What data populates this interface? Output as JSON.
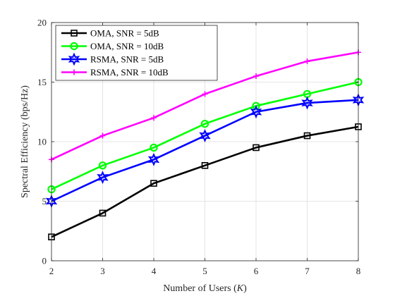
{
  "chart_data": {
    "type": "line",
    "xlabel": "Number of Users (",
    "xlabel_var": "K",
    "xlabel_close": ")",
    "ylabel": "Spectral Efficiency (bps/Hz)",
    "x": [
      2,
      3,
      4,
      5,
      6,
      7,
      8
    ],
    "xlim": [
      2,
      8
    ],
    "ylim": [
      0,
      20
    ],
    "xticks": [
      2,
      3,
      4,
      5,
      6,
      7,
      8
    ],
    "yticks": [
      0,
      5,
      10,
      15,
      20
    ],
    "grid": true,
    "legend_position": "top-left",
    "series": [
      {
        "name": "OMA, SNR = 5dB",
        "color": "#000000",
        "marker": "square",
        "values": [
          2.0,
          4.0,
          6.5,
          8.0,
          9.5,
          10.5,
          11.25
        ]
      },
      {
        "name": "OMA, SNR = 10dB",
        "color": "#00ff00",
        "marker": "circle",
        "values": [
          6.0,
          8.0,
          9.5,
          11.5,
          13.0,
          14.0,
          15.0
        ]
      },
      {
        "name": "RSMA, SNR = 5dB",
        "color": "#0000ff",
        "marker": "hexagram",
        "values": [
          5.0,
          7.0,
          8.5,
          10.5,
          12.5,
          13.25,
          13.5
        ]
      },
      {
        "name": "RSMA, SNR = 10dB",
        "color": "#ff00ff",
        "marker": "plus",
        "values": [
          8.5,
          10.5,
          12.0,
          14.0,
          15.5,
          16.75,
          17.5
        ]
      }
    ]
  }
}
